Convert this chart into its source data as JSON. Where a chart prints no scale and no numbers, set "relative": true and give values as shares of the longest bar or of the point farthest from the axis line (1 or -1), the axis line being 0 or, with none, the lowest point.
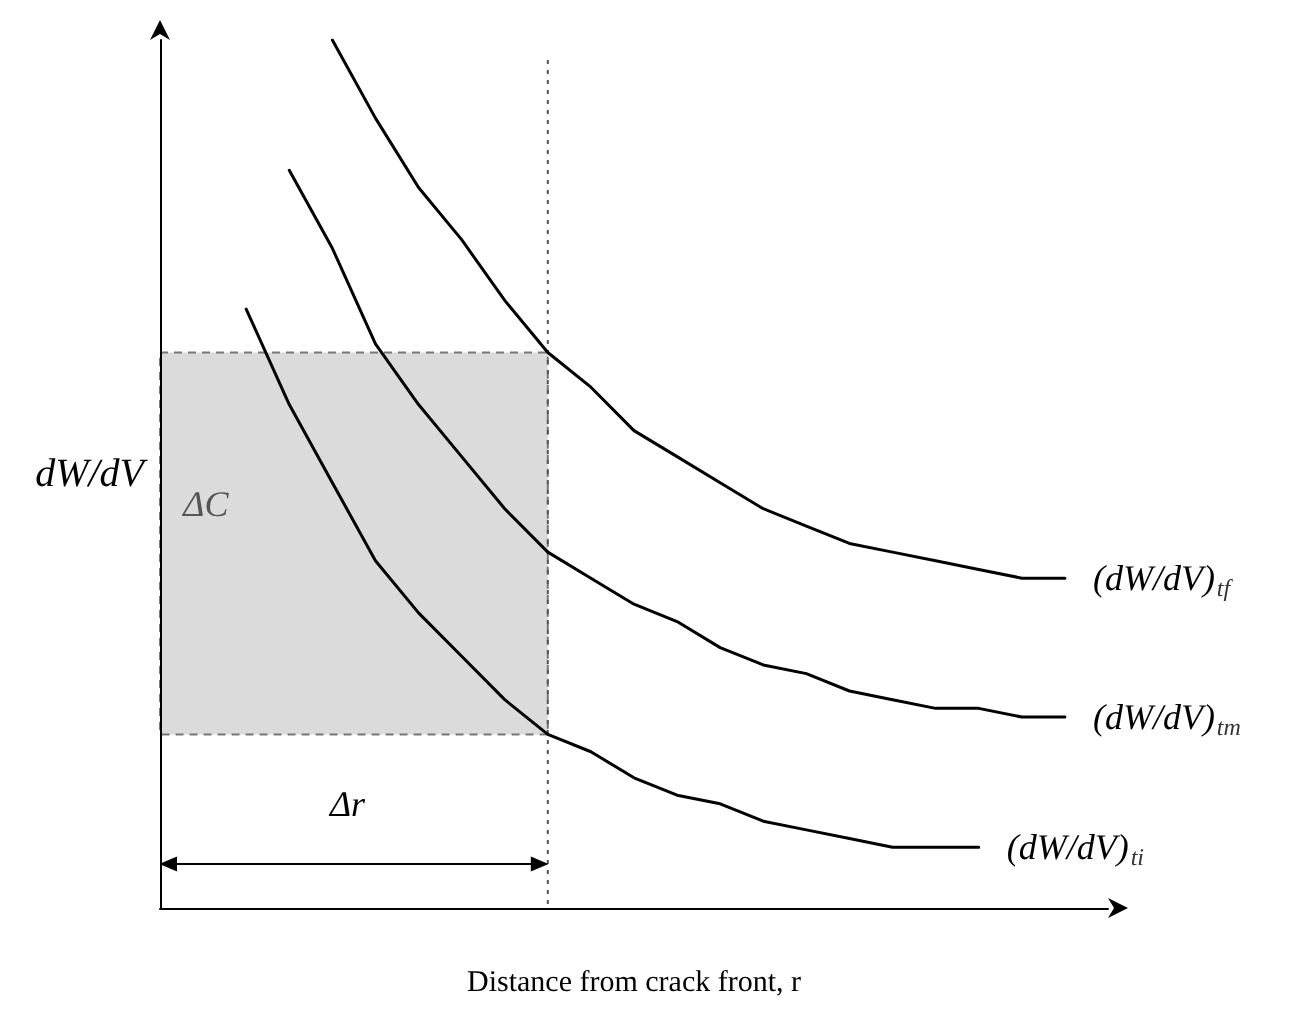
{
  "chart_data": {
    "type": "line",
    "relative": true,
    "xlabel": "Distance from crack front, r",
    "ylabel": "dW/dV",
    "categories": [
      null,
      null,
      null,
      null,
      null,
      null,
      null,
      null,
      null,
      null,
      null,
      null,
      null,
      null,
      null,
      null,
      null,
      null,
      null,
      null,
      null,
      null,
      null
    ],
    "series": [
      {
        "name": "(dW/dV)$_{tf}$",
        "color": "#000000",
        "values": [
          null,
          null,
          null,
          null,
          1,
          0.91,
          0.83,
          0.77,
          0.7,
          0.64,
          0.6,
          0.55,
          0.52,
          0.49,
          0.46,
          0.44,
          0.42,
          0.41,
          0.4,
          0.39,
          0.38,
          0.38,
          null
        ]
      },
      {
        "name": "(dW/dV)$_{tm}$",
        "color": "#000000",
        "values": [
          null,
          null,
          null,
          0.85,
          0.76,
          0.65,
          0.58,
          0.52,
          0.46,
          0.41,
          0.38,
          0.35,
          0.33,
          0.3,
          0.28,
          0.27,
          0.25,
          0.24,
          0.23,
          0.23,
          0.22,
          0.22,
          null
        ]
      },
      {
        "name": "(dW/dV)$_{ti}$",
        "color": "#000000",
        "values": [
          null,
          null,
          0.69,
          0.58,
          0.49,
          0.4,
          0.34,
          0.29,
          0.24,
          0.2,
          0.18,
          0.15,
          0.13,
          0.12,
          0.1,
          0.09,
          0.08,
          0.07,
          0.07,
          0.07,
          null,
          null,
          null
        ]
      }
    ],
    "bands": [
      {
        "axis": "y",
        "from": 0.2,
        "to": 0.64,
        "label": "ΔC",
        "color": "#cccccc"
      }
    ],
    "annotations": [
      "Δr"
    ],
    "legend": false,
    "grid": false,
    "marker": "none",
    "line_style": "solid"
  }
}
